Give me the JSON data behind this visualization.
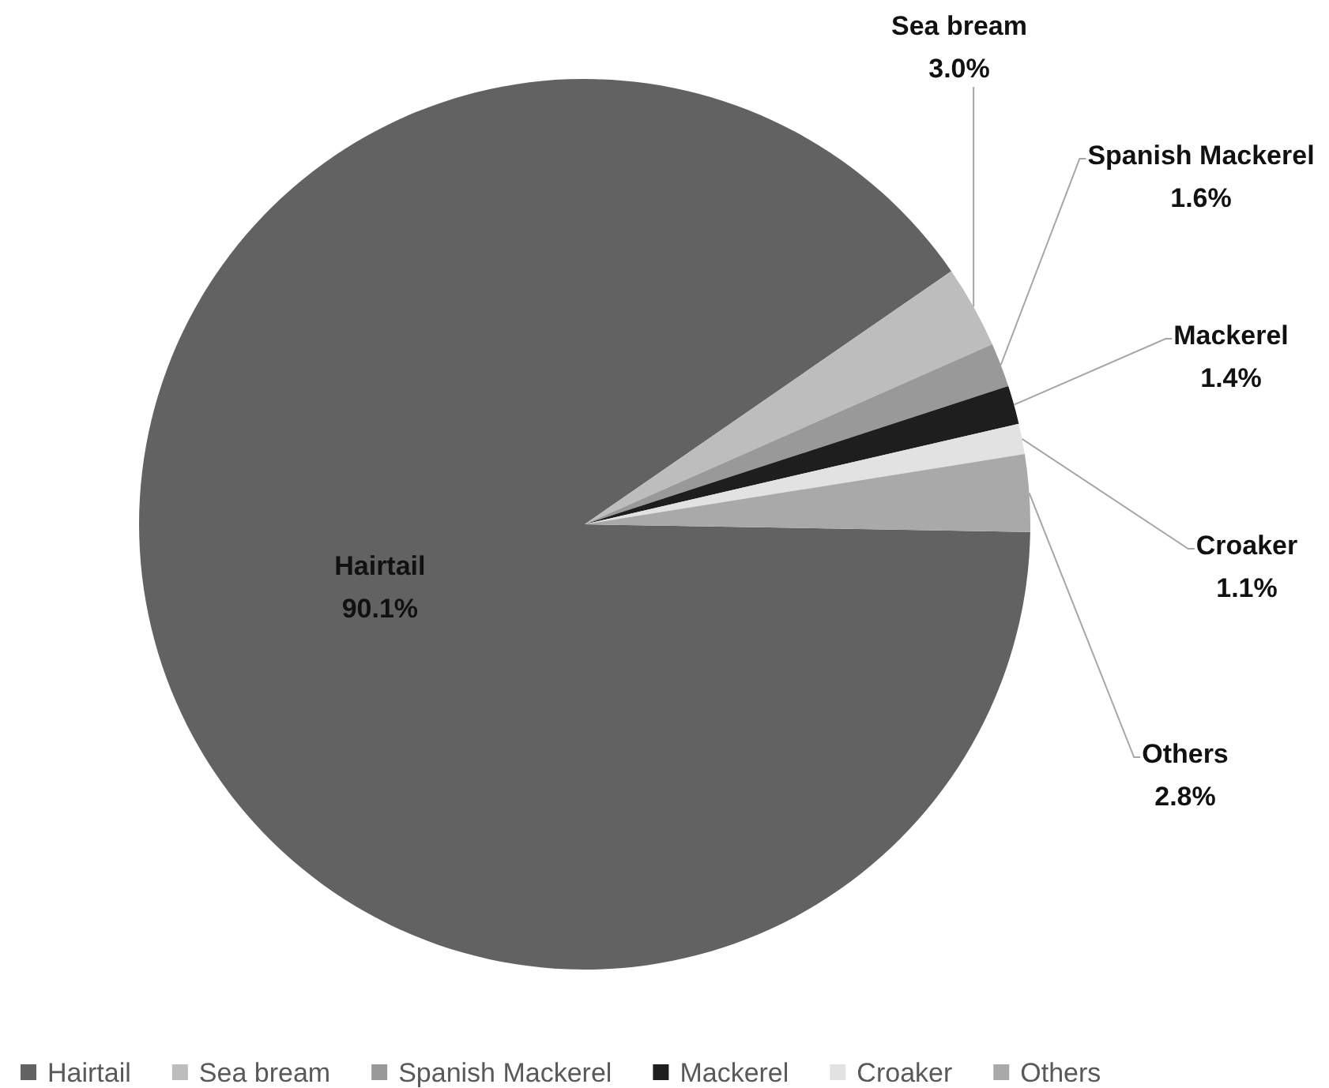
{
  "chart_data": {
    "type": "pie",
    "categories": [
      "Hairtail",
      "Sea bream",
      "Spanish Mackerel",
      "Mackerel",
      "Croaker",
      "Others"
    ],
    "values": [
      90.1,
      3.0,
      1.6,
      1.4,
      1.1,
      2.8
    ],
    "colors": [
      "#626262",
      "#bdbdbd",
      "#999999",
      "#1e1e1e",
      "#e2e2e2",
      "#a9a9a9"
    ],
    "value_labels": [
      "90.1%",
      "3.0%",
      "1.6%",
      "1.4%",
      "1.1%",
      "2.8%"
    ],
    "legend": "bottom"
  }
}
